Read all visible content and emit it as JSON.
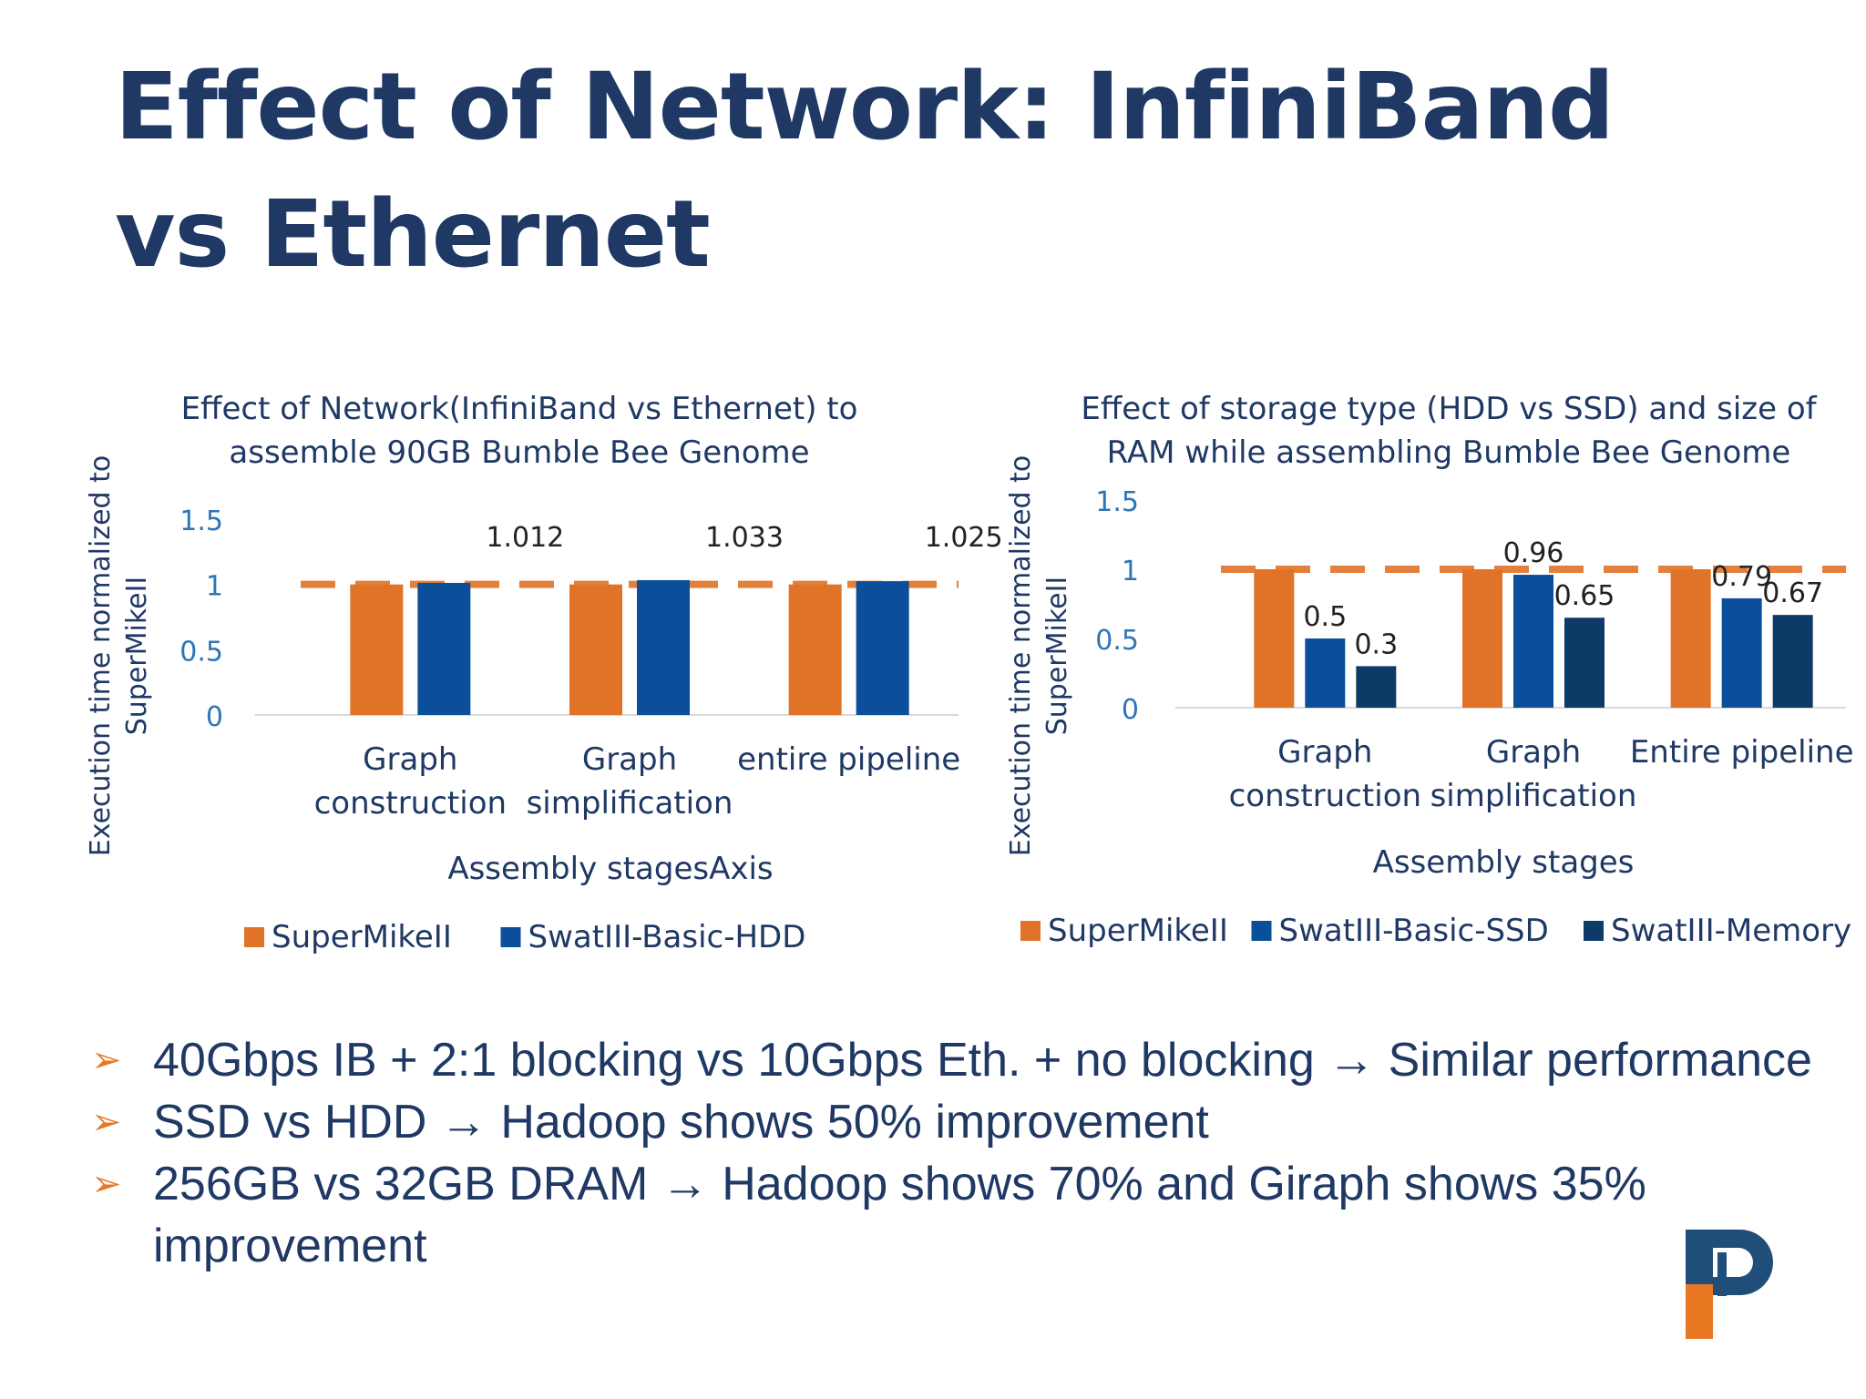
{
  "slide": {
    "title": "Effect of Network: InfiniBand vs Ethernet",
    "bullets": [
      {
        "text": "40Gbps IB + 2:1 blocking vs 10Gbps Eth. + no blocking → Similar performance",
        "icon": "arrowhead-bullet-icon"
      },
      {
        "text": "SSD vs HDD → Hadoop shows 50% improvement",
        "icon": "arrowhead-bullet-icon"
      },
      {
        "text": "256GB vs 32GB DRAM → Hadoop shows 70% and Giraph shows 35% improvement",
        "icon": "arrowhead-bullet-icon"
      }
    ],
    "logo": {
      "icon": "letter-p-logo-icon",
      "text": "P"
    }
  },
  "chart_data": [
    {
      "type": "bar",
      "title": "Effect of Network(InfiniBand vs Ethernet) to assemble 90GB Bumble Bee Genome",
      "title_lines": [
        "Effect of Network(InfiniBand vs Ethernet) to",
        "assemble 90GB Bumble Bee Genome"
      ],
      "categories": [
        "Graph construction",
        "Graph simplification",
        "entire pipeline"
      ],
      "category_lines": [
        [
          "Graph",
          "construction"
        ],
        [
          "Graph",
          "simplification"
        ],
        [
          "entire pipeline"
        ]
      ],
      "series": [
        {
          "name": "SuperMikeII",
          "values": [
            1.0,
            1.0,
            1.0
          ],
          "color": "#e07328"
        },
        {
          "name": "SwatIII-Basic-HDD",
          "values": [
            1.012,
            1.033,
            1.025
          ],
          "color": "#0b4f9a"
        }
      ],
      "data_labels": [
        "1.012",
        "1.033",
        "1.025"
      ],
      "reference_line": {
        "value": 1.0,
        "style": "dashed",
        "color": "#e07328"
      },
      "xlabel": "Assembly stagesAxis",
      "ylabel_lines": [
        "Execution time normalized to",
        "SuperMikeII"
      ],
      "ylim": [
        0,
        1.5
      ],
      "yticks": [
        "0",
        "0.5",
        "1",
        "1.5"
      ],
      "grid": false,
      "legend": "bottom"
    },
    {
      "type": "bar",
      "title": "Effect of storage type (HDD vs SSD) and size of RAM while assembling Bumble Bee Genome",
      "title_lines": [
        "Effect of storage type (HDD vs SSD) and size of",
        "RAM while assembling Bumble Bee Genome"
      ],
      "categories": [
        "Graph construction",
        "Graph simplification",
        "Entire pipeline"
      ],
      "category_lines": [
        [
          "Graph",
          "construction"
        ],
        [
          "Graph",
          "simplification"
        ],
        [
          "Entire pipeline"
        ]
      ],
      "series": [
        {
          "name": "SuperMikeII",
          "values": [
            1.0,
            1.0,
            1.0
          ],
          "color": "#e07328"
        },
        {
          "name": "SwatIII-Basic-SSD",
          "values": [
            0.5,
            0.96,
            0.79
          ],
          "color": "#0b4f9a"
        },
        {
          "name": "SwatIII-Memory",
          "values": [
            0.3,
            0.65,
            0.67
          ],
          "color": "#0e3a68"
        }
      ],
      "data_labels": [
        [
          "0.5",
          "0.3"
        ],
        [
          "0.96",
          "0.65"
        ],
        [
          "0.79",
          "0.67"
        ]
      ],
      "reference_line": {
        "value": 1.0,
        "style": "dashed",
        "color": "#e07328"
      },
      "xlabel": "Assembly stages",
      "ylabel_lines": [
        "Execution time normalized to",
        "SuperMikeII"
      ],
      "ylim": [
        0,
        1.5
      ],
      "yticks": [
        "0",
        "0.5",
        "1",
        "1.5"
      ],
      "grid": false,
      "legend": "bottom"
    }
  ]
}
